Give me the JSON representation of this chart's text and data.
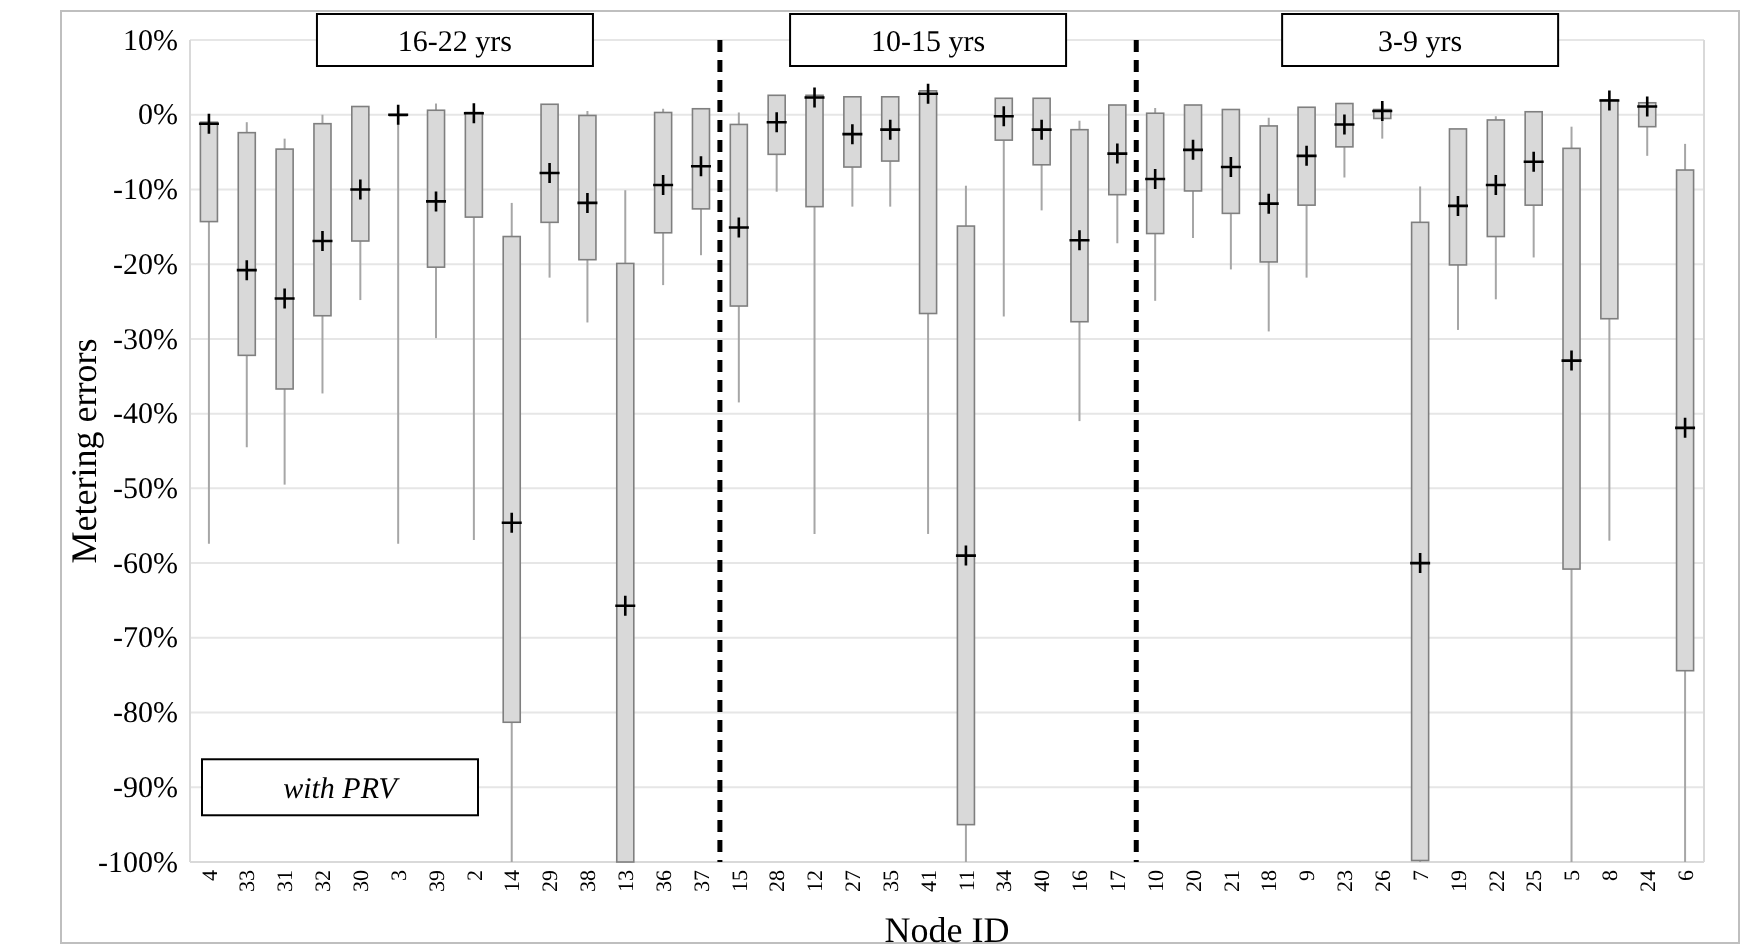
{
  "chart_data": {
    "type": "box",
    "xlabel": "Node ID",
    "ylabel": "Metering errors",
    "categories": [
      "4",
      "33",
      "31",
      "32",
      "30",
      "3",
      "39",
      "2",
      "14",
      "29",
      "38",
      "13",
      "36",
      "37",
      "15",
      "28",
      "12",
      "27",
      "35",
      "41",
      "11",
      "34",
      "40",
      "16",
      "17",
      "10",
      "20",
      "21",
      "18",
      "9",
      "23",
      "26",
      "7",
      "19",
      "22",
      "25",
      "5",
      "8",
      "24",
      "6"
    ],
    "boxes": [
      {
        "low": -57.4,
        "q1": -14.3,
        "median": -1.2,
        "q3": -1,
        "high": -1
      },
      {
        "low": -44.5,
        "q1": -32.2,
        "median": -20.8,
        "q3": -2.4,
        "high": -1
      },
      {
        "low": -49.5,
        "q1": -36.7,
        "median": -24.6,
        "q3": -4.6,
        "high": -3.2
      },
      {
        "low": -37.3,
        "q1": -26.9,
        "median": -16.9,
        "q3": -1.2,
        "high": 0
      },
      {
        "low": -24.8,
        "q1": -16.9,
        "median": -10,
        "q3": 1.1,
        "high": 1.1
      },
      {
        "low": -57.4,
        "q1": 0,
        "median": 0,
        "q3": 0,
        "high": 0
      },
      {
        "low": -29.9,
        "q1": -20.4,
        "median": -11.6,
        "q3": 0.6,
        "high": 1.5
      },
      {
        "low": -56.9,
        "q1": -13.7,
        "median": 0.2,
        "q3": 0.3,
        "high": 0.3
      },
      {
        "low": -100,
        "q1": -81.3,
        "median": -54.6,
        "q3": -16.3,
        "high": -11.8
      },
      {
        "low": -21.8,
        "q1": -14.4,
        "median": -7.8,
        "q3": 1.4,
        "high": 1.4
      },
      {
        "low": -27.8,
        "q1": -19.4,
        "median": -11.8,
        "q3": -0.1,
        "high": 0.5
      },
      {
        "low": -100,
        "q1": -100,
        "median": -65.7,
        "q3": -19.9,
        "high": -10.1
      },
      {
        "low": -22.8,
        "q1": -15.8,
        "median": -9.4,
        "q3": 0.3,
        "high": 0.8
      },
      {
        "low": -18.8,
        "q1": -12.6,
        "median": -6.9,
        "q3": 0.8,
        "high": 0.8
      },
      {
        "low": -38.5,
        "q1": -25.6,
        "median": -15.1,
        "q3": -1.3,
        "high": 0.3
      },
      {
        "low": -10.3,
        "q1": -5.3,
        "median": -1,
        "q3": 2.6,
        "high": 2.6
      },
      {
        "low": -56.1,
        "q1": -12.3,
        "median": 2.3,
        "q3": 2.6,
        "high": 2.6
      },
      {
        "low": -12.3,
        "q1": -7,
        "median": -2.6,
        "q3": 2.4,
        "high": 2.4
      },
      {
        "low": -12.3,
        "q1": -6.2,
        "median": -2,
        "q3": 2.4,
        "high": 2.4
      },
      {
        "low": -56.1,
        "q1": -26.6,
        "median": 2.8,
        "q3": 3.2,
        "high": 3.2
      },
      {
        "low": -100,
        "q1": -95,
        "median": -59,
        "q3": -14.9,
        "high": -9.5
      },
      {
        "low": -27,
        "q1": -3.4,
        "median": -0.2,
        "q3": 2.2,
        "high": 2.2
      },
      {
        "low": -12.8,
        "q1": -6.7,
        "median": -2,
        "q3": 2.2,
        "high": 2.2
      },
      {
        "low": -41,
        "q1": -27.7,
        "median": -16.8,
        "q3": -2,
        "high": -0.8
      },
      {
        "low": -17.2,
        "q1": -10.7,
        "median": -5.2,
        "q3": 1.3,
        "high": 1.3
      },
      {
        "low": -24.9,
        "q1": -15.9,
        "median": -8.6,
        "q3": 0.2,
        "high": 0.9
      },
      {
        "low": -16.5,
        "q1": -10.2,
        "median": -4.7,
        "q3": 1.3,
        "high": 1.3
      },
      {
        "low": -20.7,
        "q1": -13.2,
        "median": -7,
        "q3": 0.7,
        "high": 0.7
      },
      {
        "low": -29,
        "q1": -19.7,
        "median": -11.9,
        "q3": -1.5,
        "high": -0.4
      },
      {
        "low": -21.8,
        "q1": -12.1,
        "median": -5.5,
        "q3": 1,
        "high": 1
      },
      {
        "low": -8.4,
        "q1": -4.3,
        "median": -1.3,
        "q3": 1.5,
        "high": 1.5
      },
      {
        "low": -3.2,
        "q1": -0.5,
        "median": 0.5,
        "q3": 0.7,
        "high": 1.5
      },
      {
        "low": -100,
        "q1": -99.8,
        "median": -60,
        "q3": -14.4,
        "high": -9.6
      },
      {
        "low": -28.8,
        "q1": -20.1,
        "median": -12.2,
        "q3": -1.9,
        "high": -1.9
      },
      {
        "low": -24.7,
        "q1": -16.3,
        "median": -9.4,
        "q3": -0.7,
        "high": -0.2
      },
      {
        "low": -19.1,
        "q1": -12.1,
        "median": -6.3,
        "q3": 0.4,
        "high": 0.4
      },
      {
        "low": -100,
        "q1": -60.8,
        "median": -32.9,
        "q3": -4.5,
        "high": -1.6
      },
      {
        "low": -57,
        "q1": -27.3,
        "median": 1.9,
        "q3": 2,
        "high": 2
      },
      {
        "low": -5.5,
        "q1": -1.6,
        "median": 1.1,
        "q3": 1.6,
        "high": 1.6
      },
      {
        "low": -100,
        "q1": -74.4,
        "median": -41.9,
        "q3": -7.4,
        "high": -3.9
      }
    ],
    "color": "#d9d9d9",
    "ylim": [
      -100,
      10
    ],
    "yticks": [
      {
        "value": 10,
        "label": "10%"
      },
      {
        "value": 0,
        "label": "0%"
      },
      {
        "value": -10,
        "label": "-10%"
      },
      {
        "value": -20,
        "label": "-20%"
      },
      {
        "value": -30,
        "label": "-30%"
      },
      {
        "value": -40,
        "label": "-40%"
      },
      {
        "value": -50,
        "label": "-50%"
      },
      {
        "value": -60,
        "label": "-60%"
      },
      {
        "value": -70,
        "label": "-70%"
      },
      {
        "value": -80,
        "label": "-80%"
      },
      {
        "value": -90,
        "label": "-90%"
      },
      {
        "value": -100,
        "label": "-100%"
      }
    ],
    "grid": "y",
    "annotations": [
      "16-22 yrs",
      "10-15 yrs",
      "3-9 yrs",
      "with PRV"
    ]
  }
}
